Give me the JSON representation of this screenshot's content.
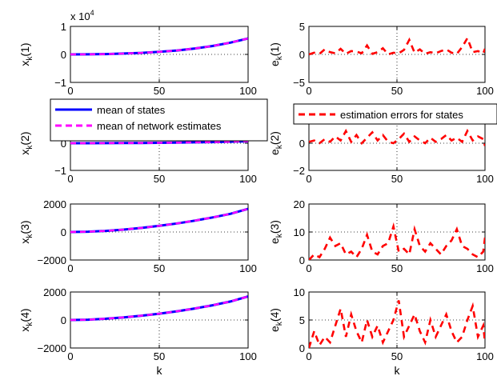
{
  "colors": {
    "states": "#0000ff",
    "estimates": "#ff00ff",
    "errors": "#ff0000",
    "grid": "#000000"
  },
  "chart_data": [
    {
      "type": "line",
      "xlabel": "",
      "ylabel": "x_k(1)",
      "ylabel_base": "x",
      "ylabel_sub": "k",
      "ylabel_suffix": "(1)",
      "xlim": [
        0,
        100
      ],
      "ylim": [
        -1,
        1
      ],
      "yticks": [
        "1",
        "0",
        "−1"
      ],
      "xticks": [
        "0",
        "50",
        "100"
      ],
      "multiplier": "x 10",
      "multiplier_exp": "4",
      "x": [
        0,
        10,
        20,
        30,
        40,
        50,
        60,
        70,
        80,
        90,
        100
      ],
      "series": [
        {
          "name": "mean of states",
          "values": [
            0,
            0.003,
            0.012,
            0.03,
            0.055,
            0.09,
            0.14,
            0.21,
            0.3,
            0.42,
            0.57
          ]
        },
        {
          "name": "mean of network estimates",
          "values": [
            0,
            0.003,
            0.012,
            0.03,
            0.055,
            0.09,
            0.14,
            0.21,
            0.3,
            0.42,
            0.57
          ]
        }
      ]
    },
    {
      "type": "line",
      "xlabel": "",
      "ylabel": "e_k(1)",
      "ylabel_base": "e",
      "ylabel_sub": "k",
      "ylabel_suffix": "(1)",
      "xlim": [
        0,
        100
      ],
      "ylim": [
        -5,
        5
      ],
      "yticks": [
        "5",
        "0",
        "−5"
      ],
      "xticks": [
        "0",
        "50",
        "100"
      ],
      "x": [
        0,
        3,
        6,
        9,
        12,
        15,
        18,
        21,
        24,
        27,
        30,
        33,
        36,
        39,
        42,
        45,
        48,
        51,
        54,
        57,
        60,
        63,
        66,
        69,
        72,
        75,
        78,
        81,
        84,
        87,
        90,
        93,
        96,
        99,
        100
      ],
      "series": [
        {
          "name": "estimation errors for states",
          "values": [
            0,
            0.3,
            0.1,
            0.9,
            0.4,
            0.2,
            1.0,
            0.1,
            0.6,
            0.5,
            0.2,
            1.6,
            0.1,
            0.4,
            1.1,
            0.0,
            0.3,
            0.2,
            0.8,
            2.6,
            0.3,
            0.9,
            0.1,
            0.4,
            0.2,
            0.6,
            0.9,
            0.3,
            0.1,
            1.3,
            2.9,
            0.4,
            0.6,
            0.2,
            1.0
          ]
        }
      ]
    },
    {
      "type": "line",
      "xlabel": "",
      "ylabel": "x_k(2)",
      "ylabel_base": "x",
      "ylabel_sub": "k",
      "ylabel_suffix": "(2)",
      "xlim": [
        0,
        100
      ],
      "ylim": [
        -1,
        1
      ],
      "yticks": [
        "1",
        "0",
        "−1"
      ],
      "xticks": [
        "0",
        "50",
        "100"
      ],
      "multiplier": "x 10",
      "multiplier_exp": "4",
      "x": [
        0,
        10,
        20,
        30,
        40,
        50,
        60,
        70,
        80,
        90,
        100
      ],
      "series": [
        {
          "name": "mean of states",
          "values": [
            0,
            0.0005,
            0.002,
            0.005,
            0.009,
            0.015,
            0.022,
            0.031,
            0.042,
            0.055,
            0.07
          ]
        },
        {
          "name": "mean of network estimates",
          "values": [
            0,
            0.0005,
            0.002,
            0.005,
            0.009,
            0.015,
            0.022,
            0.031,
            0.042,
            0.055,
            0.07
          ]
        }
      ]
    },
    {
      "type": "line",
      "xlabel": "",
      "ylabel": "e_k(2)",
      "ylabel_base": "e",
      "ylabel_sub": "k",
      "ylabel_suffix": "(2)",
      "xlim": [
        0,
        100
      ],
      "ylim": [
        -2,
        2
      ],
      "yticks": [
        "0",
        "−2"
      ],
      "xticks": [
        "0",
        "50",
        "100"
      ],
      "x": [
        0,
        3,
        6,
        9,
        12,
        15,
        18,
        21,
        24,
        27,
        30,
        33,
        36,
        39,
        42,
        45,
        48,
        51,
        54,
        57,
        60,
        63,
        66,
        69,
        72,
        75,
        78,
        81,
        84,
        87,
        90,
        93,
        96,
        99,
        100
      ],
      "series": [
        {
          "name": "estimation errors for states",
          "values": [
            0.1,
            0.2,
            0.0,
            0.3,
            0.1,
            0.5,
            0.2,
            0.9,
            0.1,
            0.6,
            0.0,
            0.4,
            0.8,
            0.2,
            0.6,
            0.1,
            0.0,
            0.3,
            0.7,
            0.1,
            0.5,
            0.2,
            0.0,
            0.4,
            0.1,
            0.3,
            0.6,
            0.2,
            0.4,
            0.1,
            0.9,
            0.2,
            0.5,
            0.3,
            -0.2
          ]
        }
      ]
    },
    {
      "type": "line",
      "xlabel": "",
      "ylabel": "x_k(3)",
      "ylabel_base": "x",
      "ylabel_sub": "k",
      "ylabel_suffix": "(3)",
      "xlim": [
        0,
        100
      ],
      "ylim": [
        -2000,
        2000
      ],
      "yticks": [
        "2000",
        "0",
        "−2000"
      ],
      "xticks": [
        "0",
        "50",
        "100"
      ],
      "x": [
        0,
        10,
        20,
        30,
        40,
        50,
        60,
        70,
        80,
        90,
        100
      ],
      "series": [
        {
          "name": "mean of states",
          "values": [
            0,
            20,
            80,
            170,
            290,
            440,
            610,
            810,
            1040,
            1300,
            1650
          ]
        },
        {
          "name": "mean of network estimates",
          "values": [
            0,
            20,
            80,
            170,
            290,
            440,
            610,
            810,
            1040,
            1300,
            1650
          ]
        }
      ]
    },
    {
      "type": "line",
      "xlabel": "",
      "ylabel": "e_k(3)",
      "ylabel_base": "e",
      "ylabel_sub": "k",
      "ylabel_suffix": "(3)",
      "xlim": [
        0,
        100
      ],
      "ylim": [
        0,
        20
      ],
      "yticks": [
        "20",
        "10",
        "0"
      ],
      "xticks": [
        "0",
        "50",
        "100"
      ],
      "x": [
        0,
        3,
        6,
        9,
        12,
        15,
        18,
        21,
        24,
        27,
        30,
        33,
        36,
        39,
        42,
        45,
        48,
        51,
        54,
        57,
        60,
        63,
        66,
        69,
        72,
        75,
        78,
        81,
        84,
        87,
        90,
        93,
        96,
        99,
        100
      ],
      "series": [
        {
          "name": "estimation errors for states",
          "values": [
            0,
            2,
            1,
            4,
            8,
            5,
            6,
            2,
            3,
            1,
            4,
            9,
            3,
            2,
            5,
            6,
            12,
            3,
            4,
            2,
            11,
            5,
            3,
            6,
            4,
            2,
            5,
            7,
            11,
            5,
            4,
            2,
            1,
            3,
            8
          ]
        }
      ]
    },
    {
      "type": "line",
      "xlabel": "k",
      "ylabel": "x_k(4)",
      "ylabel_base": "x",
      "ylabel_sub": "k",
      "ylabel_suffix": "(4)",
      "xlim": [
        0,
        100
      ],
      "ylim": [
        -2000,
        2000
      ],
      "yticks": [
        "2000",
        "0",
        "−2000"
      ],
      "xticks": [
        "0",
        "50",
        "100"
      ],
      "x": [
        0,
        10,
        20,
        30,
        40,
        50,
        60,
        70,
        80,
        90,
        100
      ],
      "series": [
        {
          "name": "mean of states",
          "values": [
            0,
            25,
            90,
            190,
            310,
            450,
            620,
            820,
            1050,
            1320,
            1680
          ]
        },
        {
          "name": "mean of network estimates",
          "values": [
            0,
            25,
            90,
            190,
            310,
            450,
            620,
            820,
            1050,
            1320,
            1680
          ]
        }
      ]
    },
    {
      "type": "line",
      "xlabel": "k",
      "ylabel": "e_k(4)",
      "ylabel_base": "e",
      "ylabel_sub": "k",
      "ylabel_suffix": "(4)",
      "xlim": [
        0,
        100
      ],
      "ylim": [
        0,
        10
      ],
      "yticks": [
        "10",
        "5",
        "0"
      ],
      "xticks": [
        "0",
        "50",
        "100"
      ],
      "x": [
        0,
        3,
        6,
        9,
        12,
        15,
        18,
        21,
        24,
        27,
        30,
        33,
        36,
        39,
        42,
        45,
        48,
        51,
        54,
        57,
        60,
        63,
        66,
        69,
        72,
        75,
        78,
        81,
        84,
        87,
        90,
        93,
        96,
        99,
        100
      ],
      "series": [
        {
          "name": "estimation errors for states",
          "values": [
            0,
            3,
            0.5,
            2,
            1,
            4,
            7,
            2,
            6,
            3,
            1,
            5,
            2,
            4,
            1,
            3,
            5,
            8.5,
            2,
            4,
            6,
            3,
            1,
            5,
            2,
            4,
            6,
            3,
            1,
            2,
            5,
            7.5,
            2,
            4,
            1
          ]
        }
      ]
    }
  ],
  "legends": {
    "left": {
      "entries": [
        {
          "label": "mean of states",
          "style": "solid",
          "color_key": "states"
        },
        {
          "label": "mean of network estimates",
          "style": "dashed",
          "color_key": "estimates"
        }
      ]
    },
    "right": {
      "entries": [
        {
          "label": "estimation errors for states",
          "style": "dashed",
          "color_key": "errors"
        }
      ]
    }
  }
}
